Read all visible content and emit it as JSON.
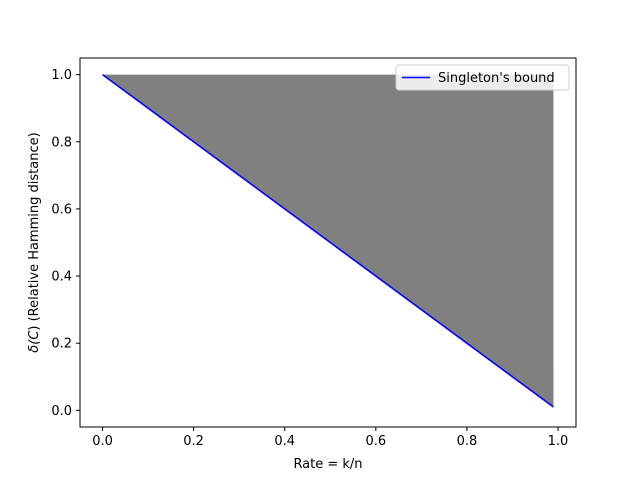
{
  "chart_data": {
    "type": "area",
    "xlabel": "Rate = k/n",
    "ylabel": "δ(C) (Relative Hamming distance)",
    "xlim": [
      -0.0495,
      1.0395
    ],
    "ylim": [
      -0.0495,
      1.0495
    ],
    "xticks": [
      0.0,
      0.2,
      0.4,
      0.6,
      0.8,
      1.0
    ],
    "xtick_labels": [
      "0.0",
      "0.2",
      "0.4",
      "0.6",
      "0.8",
      "1.0"
    ],
    "yticks": [
      0.0,
      0.2,
      0.4,
      0.6,
      0.8,
      1.0
    ],
    "ytick_labels": [
      "0.0",
      "0.2",
      "0.4",
      "0.6",
      "0.8",
      "1.0"
    ],
    "grid": false,
    "legend_position": "top-right",
    "series": [
      {
        "name": "Singleton's bound",
        "kind": "line",
        "color": "#0000ff",
        "x": [
          0.0,
          0.99
        ],
        "y": [
          1.0,
          0.01
        ]
      }
    ],
    "fill": {
      "color": "#808080",
      "x": [
        0.0,
        0.99
      ],
      "y_lower": [
        1.0,
        0.01
      ],
      "y_upper": [
        1.0,
        1.0
      ]
    }
  }
}
